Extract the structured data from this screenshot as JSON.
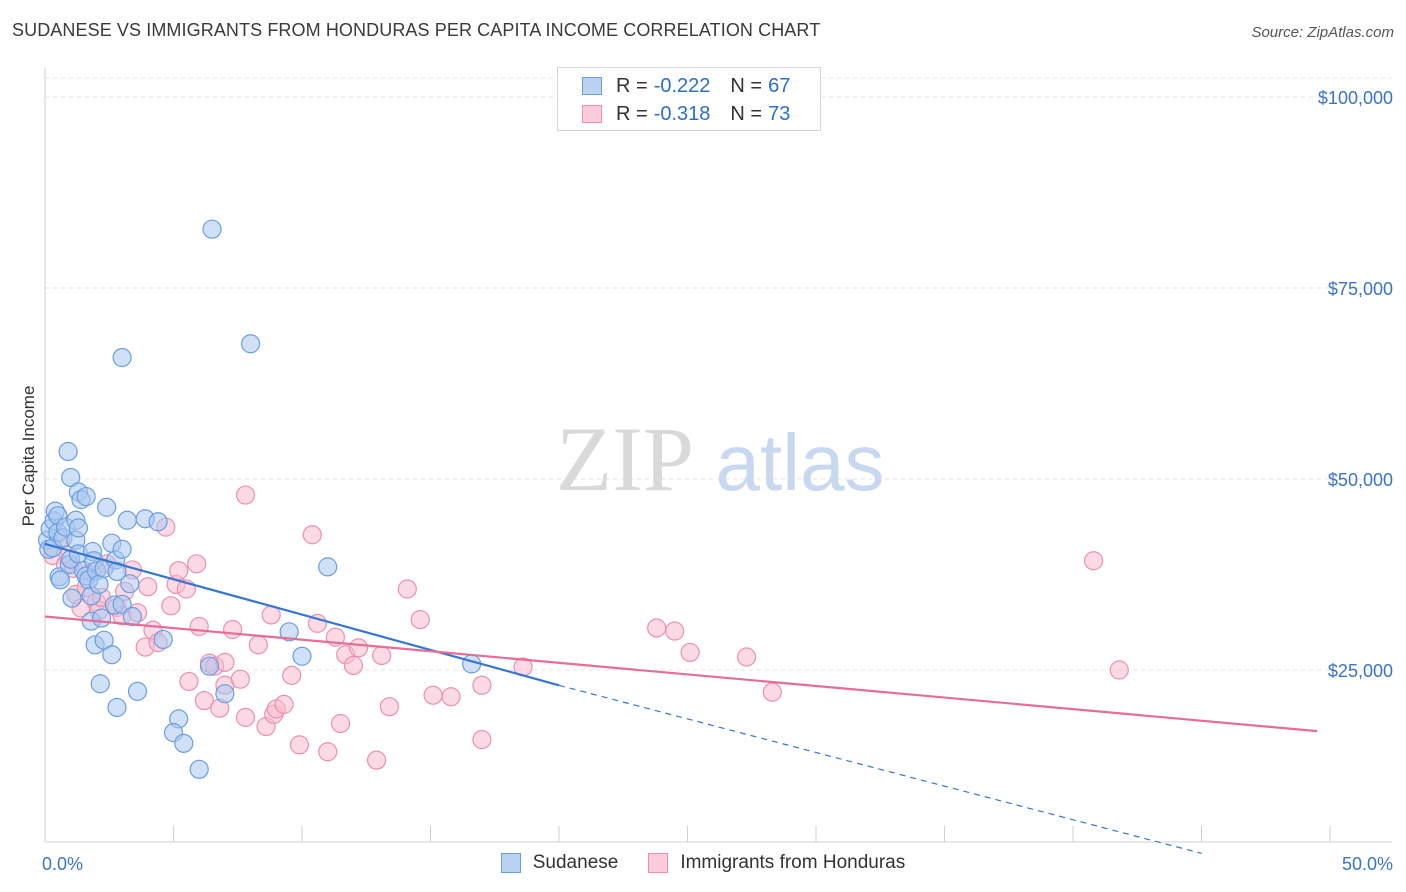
{
  "title": "SUDANESE VS IMMIGRANTS FROM HONDURAS PER CAPITA INCOME CORRELATION CHART",
  "source": "Source: ZipAtlas.com",
  "watermark": {
    "zip": "ZIP",
    "atlas": "atlas"
  },
  "legend": {
    "series1": {
      "r_label": "R =",
      "r_value": "-0.222",
      "n_label": "N =",
      "n_value": "67"
    },
    "series2": {
      "r_label": "R =",
      "r_value": "-0.318",
      "n_label": "N =",
      "n_value": "73"
    }
  },
  "colors": {
    "blue_fill": "#a9c8f0",
    "blue_stroke": "#6a9ee0",
    "blue_line": "#3476d6",
    "pink_fill": "#f7bcd0",
    "pink_stroke": "#ec8fb0",
    "pink_line": "#e56d98",
    "axis_text": "#3a74c9",
    "grid": "#e3e3e3"
  },
  "chart_data": {
    "type": "scatter",
    "title": "SUDANESE VS IMMIGRANTS FROM HONDURAS PER CAPITA INCOME CORRELATION CHART",
    "xlabel": "",
    "ylabel": "Per Capita Income",
    "xlim": [
      0,
      50
    ],
    "ylim": [
      0,
      105000
    ],
    "x_tick_labels": {
      "left": "0.0%",
      "right": "50.0%"
    },
    "y_ticks": [
      {
        "value": 25000,
        "label": "$25,000"
      },
      {
        "value": 50000,
        "label": "$50,000"
      },
      {
        "value": 75000,
        "label": "$75,000"
      },
      {
        "value": 100000,
        "label": "$100,000"
      }
    ],
    "series": [
      {
        "name": "Sudanese",
        "color": "#a9c8f0",
        "r": -0.222,
        "n": 67,
        "trend": {
          "x0": 0,
          "y0": 41500,
          "x1": 20,
          "y1": 23000,
          "dash_to_x": 45,
          "dash_to_y": 1000
        },
        "points": [
          [
            0.1,
            42000
          ],
          [
            0.15,
            40800
          ],
          [
            0.2,
            43500
          ],
          [
            0.3,
            41000
          ],
          [
            0.35,
            44500
          ],
          [
            0.4,
            45800
          ],
          [
            0.5,
            45200
          ],
          [
            0.5,
            43000
          ],
          [
            0.55,
            37200
          ],
          [
            0.6,
            36800
          ],
          [
            0.7,
            42300
          ],
          [
            0.8,
            43700
          ],
          [
            0.9,
            53600
          ],
          [
            0.95,
            38800
          ],
          [
            1.0,
            39500
          ],
          [
            1.0,
            50200
          ],
          [
            1.05,
            34400
          ],
          [
            1.2,
            42000
          ],
          [
            1.2,
            44600
          ],
          [
            1.3,
            43600
          ],
          [
            1.3,
            40200
          ],
          [
            1.3,
            48300
          ],
          [
            1.4,
            47300
          ],
          [
            1.5,
            38000
          ],
          [
            1.6,
            47700
          ],
          [
            1.6,
            37300
          ],
          [
            1.7,
            36800
          ],
          [
            1.8,
            31400
          ],
          [
            1.8,
            34700
          ],
          [
            1.85,
            40500
          ],
          [
            1.9,
            39300
          ],
          [
            1.95,
            28300
          ],
          [
            2.0,
            38000
          ],
          [
            2.1,
            36200
          ],
          [
            2.15,
            23200
          ],
          [
            2.2,
            31800
          ],
          [
            2.3,
            38300
          ],
          [
            2.3,
            28900
          ],
          [
            2.4,
            46300
          ],
          [
            2.6,
            41600
          ],
          [
            2.7,
            33500
          ],
          [
            2.75,
            39400
          ],
          [
            2.8,
            20100
          ],
          [
            2.8,
            37900
          ],
          [
            3.0,
            33600
          ],
          [
            3.0,
            40800
          ],
          [
            3.0,
            65900
          ],
          [
            3.2,
            44600
          ],
          [
            3.3,
            36300
          ],
          [
            3.4,
            32000
          ],
          [
            3.6,
            22200
          ],
          [
            3.9,
            44800
          ],
          [
            4.4,
            44400
          ],
          [
            4.6,
            29000
          ],
          [
            5.2,
            18600
          ],
          [
            5.0,
            16800
          ],
          [
            5.4,
            15400
          ],
          [
            6.4,
            25500
          ],
          [
            6.5,
            82700
          ],
          [
            7.0,
            21900
          ],
          [
            8.0,
            67700
          ],
          [
            10.0,
            26800
          ],
          [
            16.6,
            25800
          ],
          [
            11.0,
            38500
          ],
          [
            6.0,
            12000
          ],
          [
            2.6,
            27000
          ],
          [
            9.5,
            30000
          ]
        ]
      },
      {
        "name": "Immigrants from Honduras",
        "color": "#f7bcd0",
        "r": -0.318,
        "n": 73,
        "trend": {
          "x0": 0,
          "y0": 32000,
          "x1": 49.5,
          "y1": 17000
        },
        "points": [
          [
            0.3,
            40000
          ],
          [
            0.6,
            42100
          ],
          [
            0.8,
            38800
          ],
          [
            0.9,
            40000
          ],
          [
            1.1,
            38300
          ],
          [
            1.2,
            34900
          ],
          [
            1.4,
            33100
          ],
          [
            1.6,
            35800
          ],
          [
            1.8,
            37800
          ],
          [
            2.0,
            33900
          ],
          [
            2.1,
            32800
          ],
          [
            2.2,
            34500
          ],
          [
            2.4,
            38900
          ],
          [
            2.8,
            33200
          ],
          [
            3.0,
            32100
          ],
          [
            3.1,
            35300
          ],
          [
            3.4,
            38100
          ],
          [
            3.6,
            32500
          ],
          [
            3.9,
            28000
          ],
          [
            4.0,
            35900
          ],
          [
            4.2,
            30200
          ],
          [
            4.4,
            28600
          ],
          [
            4.7,
            43700
          ],
          [
            4.9,
            33400
          ],
          [
            5.1,
            36200
          ],
          [
            5.2,
            38000
          ],
          [
            5.5,
            35600
          ],
          [
            5.6,
            23500
          ],
          [
            5.9,
            38900
          ],
          [
            6.0,
            30700
          ],
          [
            6.2,
            21000
          ],
          [
            6.4,
            25900
          ],
          [
            6.6,
            25500
          ],
          [
            6.8,
            20000
          ],
          [
            7.0,
            23000
          ],
          [
            7.3,
            30300
          ],
          [
            7.6,
            23800
          ],
          [
            7.8,
            18800
          ],
          [
            7.8,
            47900
          ],
          [
            8.3,
            28300
          ],
          [
            8.6,
            17600
          ],
          [
            8.8,
            32200
          ],
          [
            8.9,
            19200
          ],
          [
            9.0,
            19900
          ],
          [
            9.3,
            20500
          ],
          [
            9.6,
            24300
          ],
          [
            9.9,
            15200
          ],
          [
            10.4,
            42700
          ],
          [
            10.6,
            31100
          ],
          [
            11.0,
            14300
          ],
          [
            11.3,
            29300
          ],
          [
            11.5,
            18000
          ],
          [
            11.7,
            27000
          ],
          [
            12.0,
            25600
          ],
          [
            12.2,
            27900
          ],
          [
            12.9,
            13200
          ],
          [
            13.1,
            26900
          ],
          [
            13.4,
            20200
          ],
          [
            14.1,
            35600
          ],
          [
            14.6,
            31600
          ],
          [
            15.1,
            21700
          ],
          [
            15.8,
            21500
          ],
          [
            17.0,
            23000
          ],
          [
            17.0,
            15900
          ],
          [
            18.6,
            25400
          ],
          [
            23.8,
            30500
          ],
          [
            24.5,
            30100
          ],
          [
            25.1,
            27300
          ],
          [
            27.3,
            26700
          ],
          [
            28.3,
            22100
          ],
          [
            40.8,
            39300
          ],
          [
            41.8,
            25000
          ],
          [
            7.0,
            26000
          ]
        ]
      }
    ]
  }
}
